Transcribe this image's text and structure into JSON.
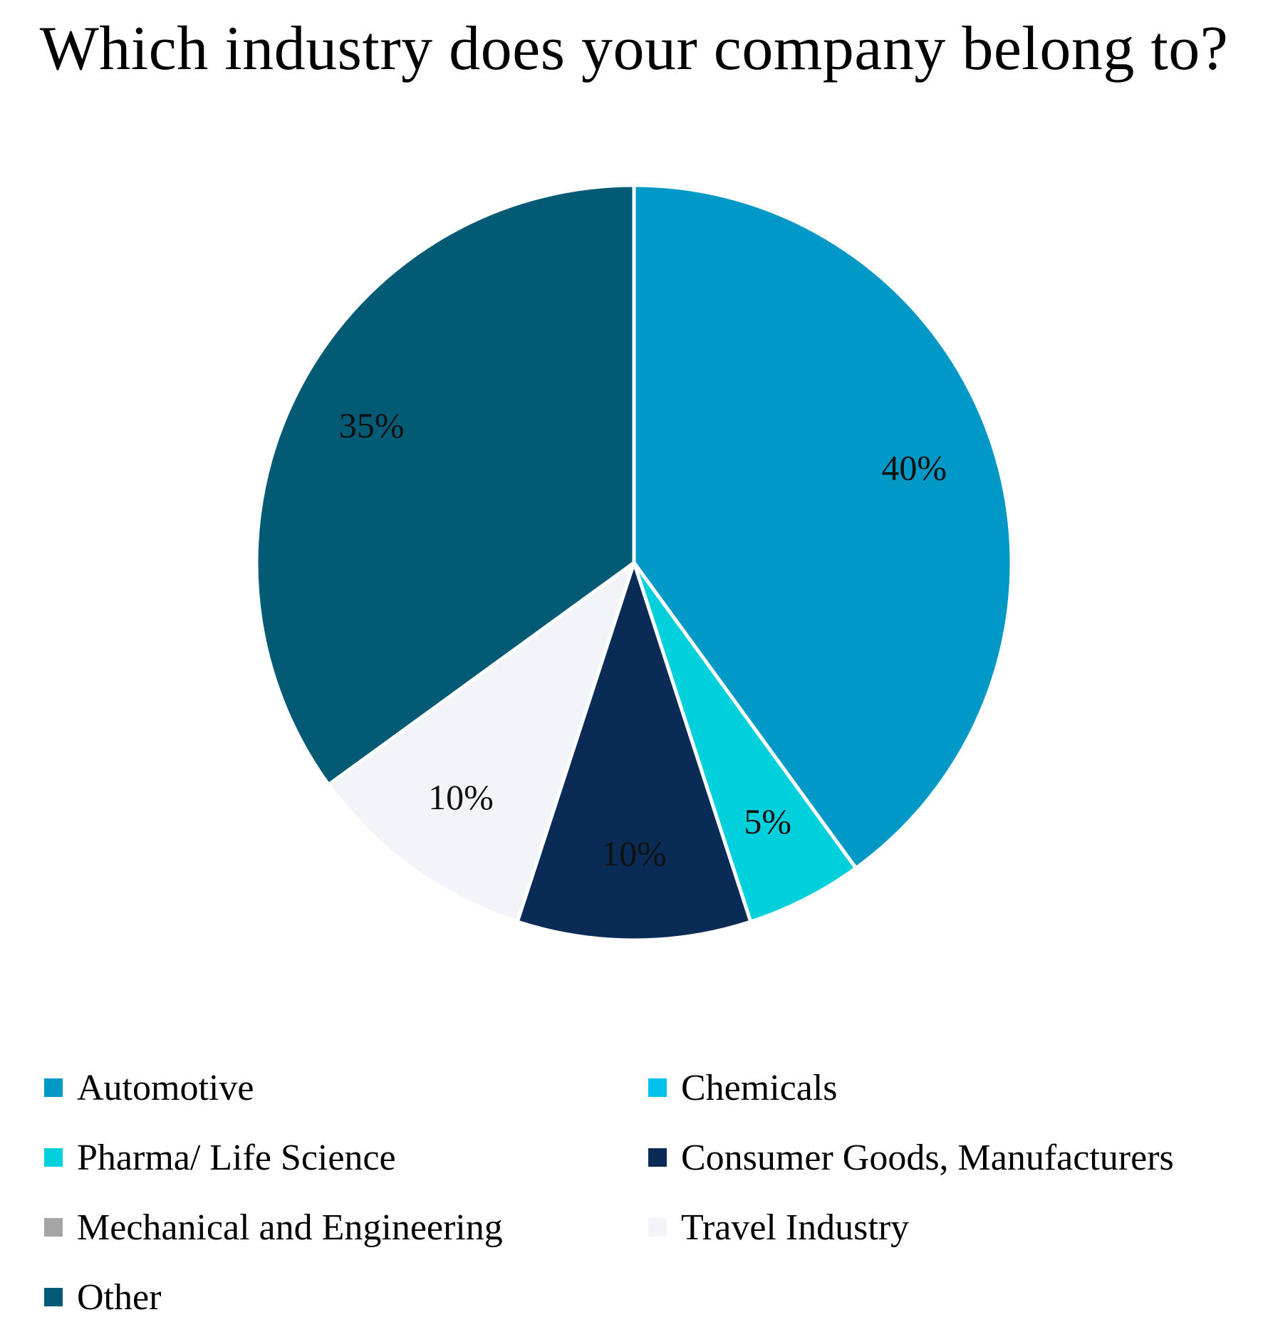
{
  "chart_data": {
    "type": "pie",
    "title": "Which industry does your company belong to?",
    "legend_position": "bottom",
    "slices": [
      {
        "name": "Automotive",
        "value": 40,
        "label": "40%",
        "color": "#0098C6"
      },
      {
        "name": "Chemicals",
        "value": 0,
        "label": "",
        "color": "#00C1EC"
      },
      {
        "name": "Pharma/ Life Science",
        "value": 5,
        "label": "5%",
        "color": "#00CFDC"
      },
      {
        "name": "Consumer Goods, Manufacturers",
        "value": 10,
        "label": "10%",
        "color": "#0A2B55"
      },
      {
        "name": "Mechanical and Engineering",
        "value": 0,
        "label": "",
        "color": "#A5A5A5"
      },
      {
        "name": "Travel Industry",
        "value": 10,
        "label": "10%",
        "color": "#F3F4F9"
      },
      {
        "name": "Other",
        "value": 35,
        "label": "35%",
        "color": "#025A75"
      }
    ]
  }
}
